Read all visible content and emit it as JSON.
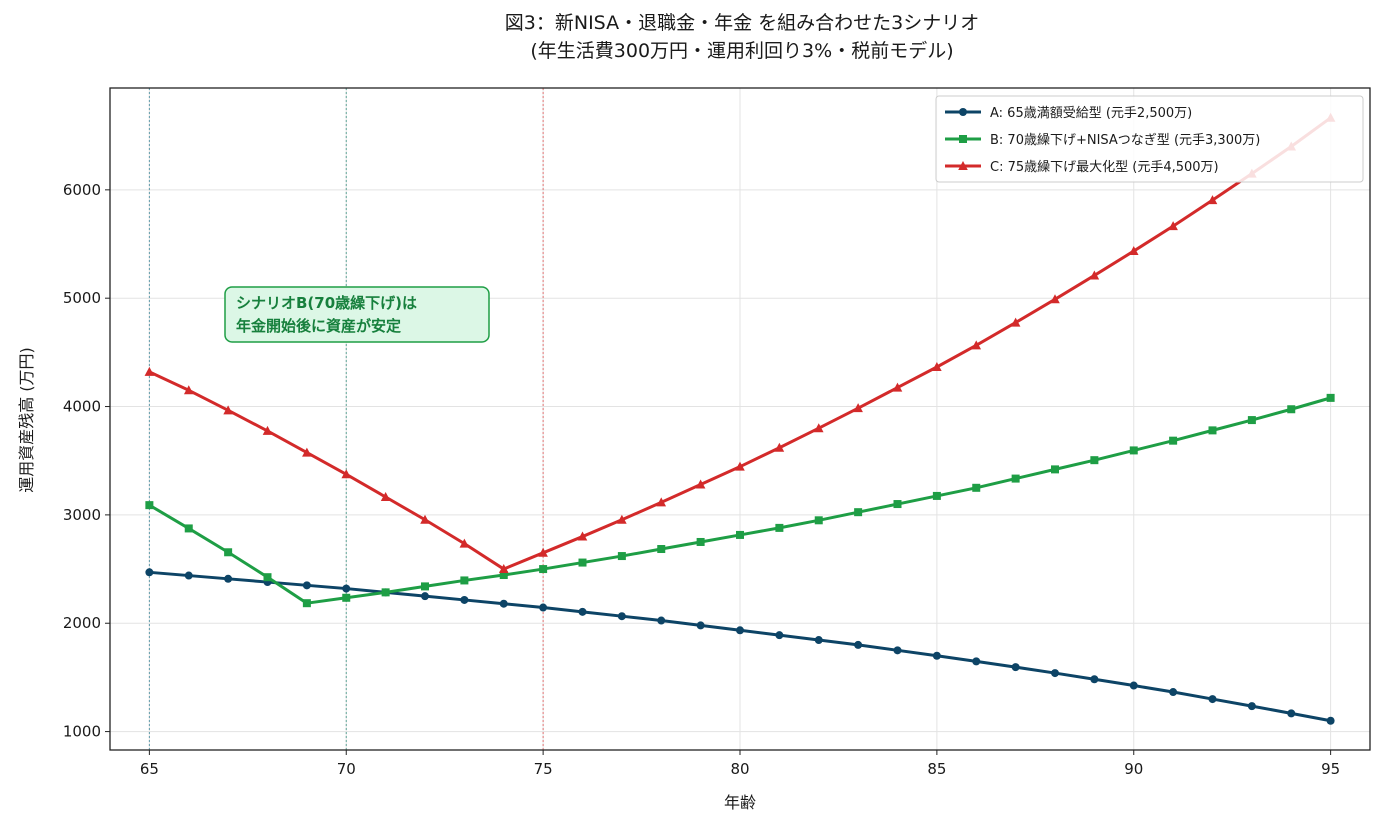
{
  "chart_data": {
    "type": "line",
    "title": "図3：新NISA・退職金・年金 を組み合わせた3シナリオ",
    "subtitle": "(年生活費300万円・運用利回り3%・税前モデル)",
    "xlabel": "年齢",
    "ylabel": "運用資産残高 (万円)",
    "xlim": [
      64,
      96
    ],
    "ylim": [
      830,
      6940
    ],
    "xticks": [
      65,
      70,
      75,
      80,
      85,
      90,
      95
    ],
    "yticks": [
      1000,
      2000,
      3000,
      4000,
      5000,
      6000
    ],
    "grid": true,
    "legend_position": "top-right",
    "vlines": [
      {
        "x": 65,
        "color": "#4a8fa0"
      },
      {
        "x": 70,
        "color": "#4a9a8a"
      },
      {
        "x": 75,
        "color": "#e06060"
      }
    ],
    "annotation": {
      "lines": [
        "シナリオB(70歳繰下げ)は",
        "年金開始後に資産が安定"
      ],
      "x": 67.2,
      "y": 4910
    },
    "x": [
      65,
      66,
      67,
      68,
      69,
      70,
      71,
      72,
      73,
      74,
      75,
      76,
      77,
      78,
      79,
      80,
      81,
      82,
      83,
      84,
      85,
      86,
      87,
      88,
      89,
      90,
      91,
      92,
      93,
      94,
      95
    ],
    "series": [
      {
        "name": "A: 65歳満額受給型 (元手2,500万)",
        "color": "#0d4466",
        "marker": "circle",
        "values": [
          2470,
          2440,
          2410,
          2380,
          2350,
          2320,
          2285,
          2250,
          2215,
          2180,
          2145,
          2105,
          2065,
          2025,
          1980,
          1935,
          1890,
          1845,
          1800,
          1750,
          1700,
          1648,
          1595,
          1540,
          1483,
          1425,
          1365,
          1300,
          1235,
          1168,
          1100
        ]
      },
      {
        "name": "B: 70歳繰下げ+NISAつなぎ型 (元手3,300万)",
        "color": "#1e9e45",
        "marker": "square",
        "values": [
          3090,
          2875,
          2655,
          2425,
          2185,
          2235,
          2285,
          2340,
          2395,
          2445,
          2500,
          2560,
          2620,
          2685,
          2750,
          2815,
          2880,
          2950,
          3025,
          3100,
          3175,
          3250,
          3335,
          3420,
          3505,
          3595,
          3685,
          3780,
          3875,
          3975,
          4080
        ]
      },
      {
        "name": "C: 75歳繰下げ最大化型 (元手4,500万)",
        "color": "#d32a2a",
        "marker": "triangle",
        "values": [
          4320,
          4150,
          3965,
          3775,
          3575,
          3375,
          3165,
          2955,
          2735,
          2500,
          2650,
          2800,
          2955,
          3115,
          3280,
          3445,
          3620,
          3800,
          3985,
          4175,
          4365,
          4565,
          4775,
          4990,
          5210,
          5435,
          5665,
          5905,
          6150,
          6400,
          6665
        ]
      }
    ]
  }
}
